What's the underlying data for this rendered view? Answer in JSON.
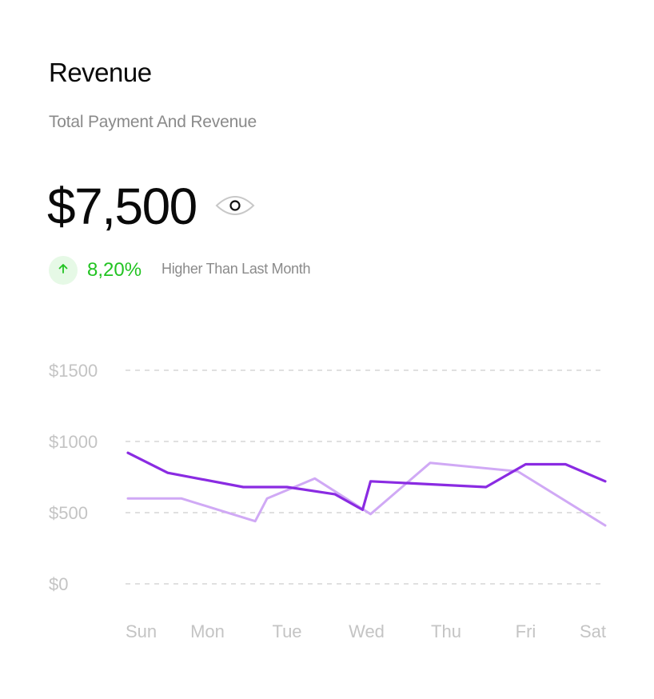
{
  "card": {
    "title": "Revenue",
    "subtitle": "Total Payment And Revenue",
    "amount": "$7,500",
    "visibility_icon": "eye-icon",
    "trend": {
      "icon": "arrow-up-icon",
      "value": "8,20%",
      "text": "Higher Than Last Month",
      "color": "#22c322"
    }
  },
  "chart_data": {
    "type": "line",
    "categories": [
      "Sun",
      "Mon",
      "Tue",
      "Wed",
      "Thu",
      "Fri",
      "Sat"
    ],
    "ylim": [
      0,
      1500
    ],
    "yticks": [
      {
        "value": 1500,
        "label": "$1500"
      },
      {
        "value": 1000,
        "label": "$1000"
      },
      {
        "value": 500,
        "label": "$500"
      },
      {
        "value": 0,
        "label": "$0"
      }
    ],
    "grid": true,
    "series": [
      {
        "color": "#d0a9f5",
        "points": [
          {
            "x": 0,
            "y": 600
          },
          {
            "x": 0.67,
            "y": 600
          },
          {
            "x": 1.6,
            "y": 440
          },
          {
            "x": 1.75,
            "y": 600
          },
          {
            "x": 2.35,
            "y": 740
          },
          {
            "x": 3.05,
            "y": 490
          },
          {
            "x": 3.8,
            "y": 850
          },
          {
            "x": 4.9,
            "y": 790
          },
          {
            "x": 6.0,
            "y": 410
          }
        ]
      },
      {
        "color": "#8a2be2",
        "points": [
          {
            "x": 0,
            "y": 920
          },
          {
            "x": 0.5,
            "y": 780
          },
          {
            "x": 1.45,
            "y": 680
          },
          {
            "x": 2.0,
            "y": 680
          },
          {
            "x": 2.6,
            "y": 630
          },
          {
            "x": 2.95,
            "y": 520
          },
          {
            "x": 3.05,
            "y": 720
          },
          {
            "x": 4.5,
            "y": 680
          },
          {
            "x": 5.0,
            "y": 840
          },
          {
            "x": 5.5,
            "y": 840
          },
          {
            "x": 6.0,
            "y": 720
          }
        ]
      }
    ]
  }
}
